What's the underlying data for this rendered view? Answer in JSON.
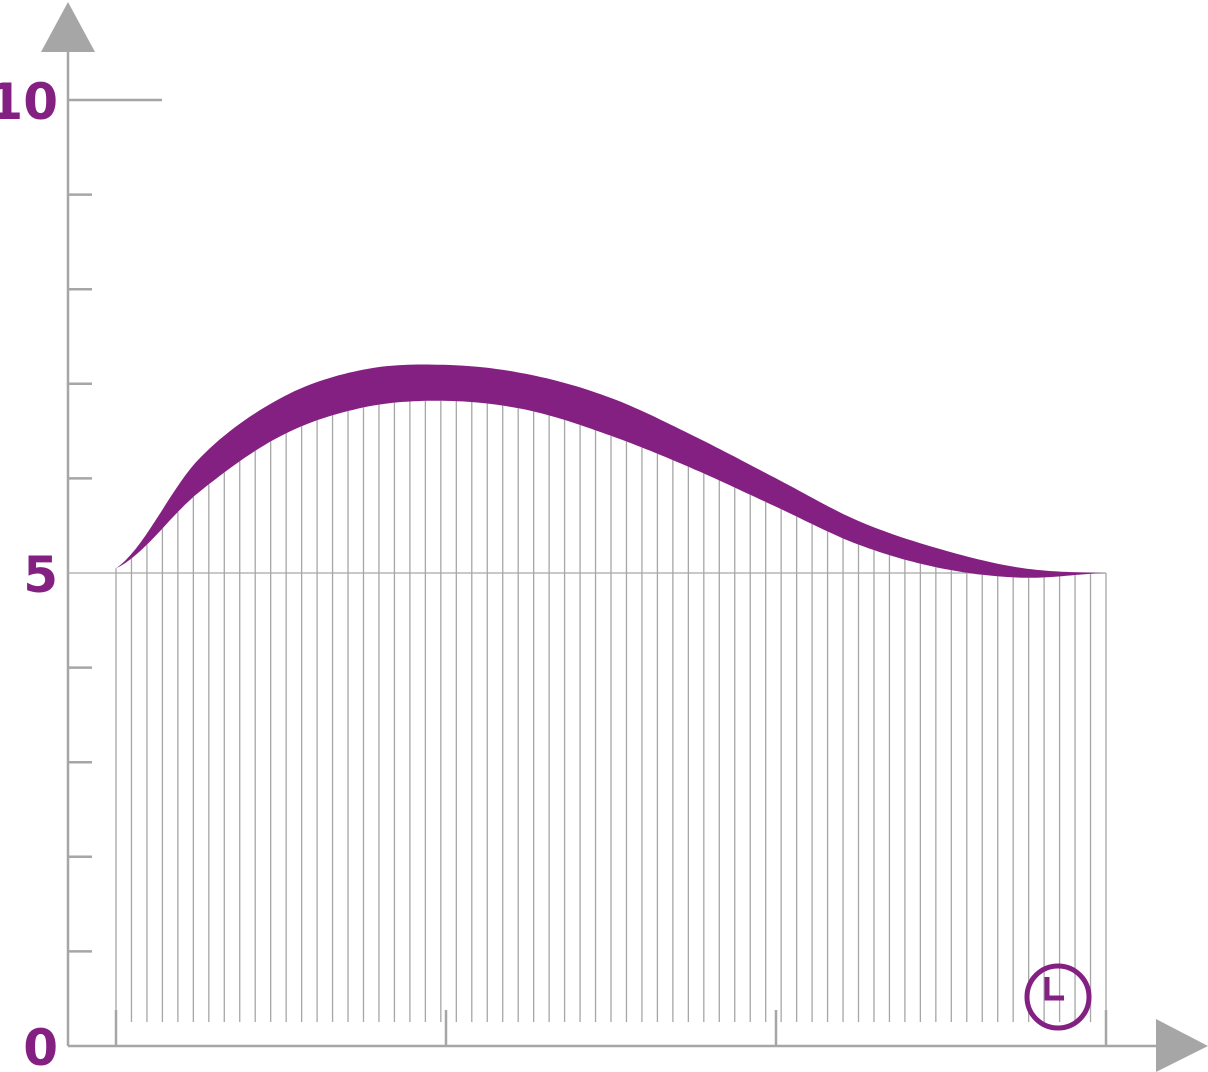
{
  "chart_data": {
    "type": "area",
    "title": "",
    "xlabel": "",
    "ylabel": "",
    "ylim": [
      0,
      10
    ],
    "xlim": [
      0,
      3
    ],
    "y_ticks_labeled": [
      "0",
      "5",
      "10"
    ],
    "y_minor_step": 1,
    "x_ticks": [
      0,
      1,
      2,
      3
    ],
    "grid": true,
    "colors": {
      "series": "#842082",
      "axis": "#a6a6a6",
      "label": "#842082"
    },
    "x_axis_icon": "clock-icon",
    "series": [
      {
        "x": [
          0,
          0.25,
          0.5,
          0.75,
          1.0,
          1.25,
          1.5,
          1.75,
          2.0,
          2.25,
          2.5,
          2.75,
          3.0
        ],
        "upper": [
          5.05,
          6.2,
          6.85,
          7.15,
          7.2,
          7.1,
          6.85,
          6.45,
          6.0,
          5.55,
          5.25,
          5.05,
          5.0
        ],
        "lower": [
          5.05,
          5.85,
          6.45,
          6.75,
          6.82,
          6.72,
          6.45,
          6.1,
          5.7,
          5.3,
          5.05,
          4.95,
          5.0
        ]
      }
    ]
  }
}
